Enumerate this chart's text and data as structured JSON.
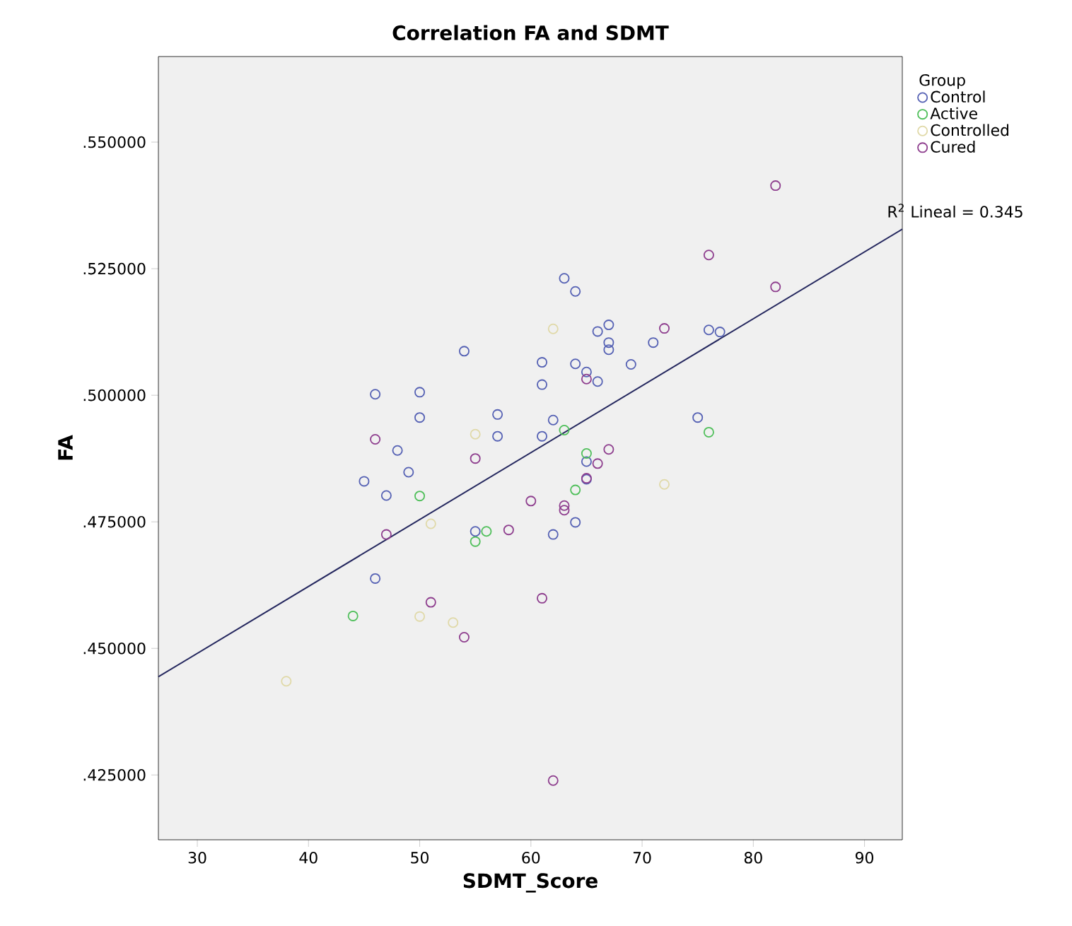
{
  "chart_data": {
    "type": "scatter",
    "title": "Correlation FA and SDMT",
    "xlabel": "SDMT_Score",
    "ylabel": "FA",
    "legend_title": "Group",
    "legend": "top right",
    "marker": "circle",
    "grid": false,
    "xlim": [
      26.5,
      93.4
    ],
    "ylim": [
      0.4122,
      0.5669
    ],
    "xticks": [
      30,
      40,
      50,
      60,
      70,
      80,
      90
    ],
    "yticks": [
      {
        "value": 0.425,
        "label": ".425000"
      },
      {
        "value": 0.45,
        "label": ".450000"
      },
      {
        "value": 0.475,
        "label": ".475000"
      },
      {
        "value": 0.5,
        "label": ".500000"
      },
      {
        "value": 0.525,
        "label": ".525000"
      },
      {
        "value": 0.55,
        "label": ".550000"
      }
    ],
    "series": [
      {
        "name": "Control",
        "color": "#5561b4",
        "x": [
          54,
          46,
          50,
          50,
          57,
          57,
          48,
          49,
          45,
          47,
          55,
          46,
          63,
          64,
          66,
          67,
          67,
          67,
          71,
          76,
          77,
          61,
          64,
          65,
          66,
          69,
          61,
          62,
          61,
          75,
          65,
          65,
          64,
          62
        ],
        "values": [
          0.5087,
          0.5002,
          0.5006,
          0.4956,
          0.4962,
          0.4919,
          0.4891,
          0.4848,
          0.483,
          0.4802,
          0.4731,
          0.4638,
          0.5231,
          0.5205,
          0.5126,
          0.5139,
          0.5104,
          0.509,
          0.5104,
          0.5129,
          0.5125,
          0.5065,
          0.5062,
          0.5046,
          0.5027,
          0.5061,
          0.5021,
          0.4951,
          0.4919,
          0.4956,
          0.4869,
          0.4834,
          0.4749,
          0.4725
        ]
      },
      {
        "name": "Active",
        "color": "#4fbf5a",
        "x": [
          50,
          56,
          55,
          63,
          76,
          65,
          64,
          44
        ],
        "values": [
          0.4801,
          0.4731,
          0.4711,
          0.4931,
          0.4927,
          0.4885,
          0.4813,
          0.4564
        ]
      },
      {
        "name": "Controlled",
        "color": "#e0d9a8",
        "x": [
          55,
          51,
          62,
          72,
          50,
          53,
          38
        ],
        "values": [
          0.4923,
          0.4746,
          0.5131,
          0.4824,
          0.4563,
          0.4551,
          0.4435
        ]
      },
      {
        "name": "Cured",
        "color": "#8e3e8e",
        "x": [
          46,
          55,
          47,
          58,
          82,
          76,
          82,
          72,
          65,
          67,
          66,
          65,
          60,
          63,
          63,
          61,
          62,
          51,
          54
        ],
        "values": [
          0.4913,
          0.4875,
          0.4725,
          0.4734,
          0.5414,
          0.5277,
          0.5214,
          0.5132,
          0.5032,
          0.4893,
          0.4865,
          0.4836,
          0.4791,
          0.4782,
          0.4773,
          0.4599,
          0.4239,
          0.4591,
          0.4522
        ]
      },
      {
        "name": "R$^{2}$ Lineal = 0.345",
        "type": "line",
        "marker": "none",
        "color": "#24275e",
        "x": [
          26.5,
          93.4
        ],
        "values": [
          0.4444,
          0.5328
        ]
      }
    ]
  }
}
